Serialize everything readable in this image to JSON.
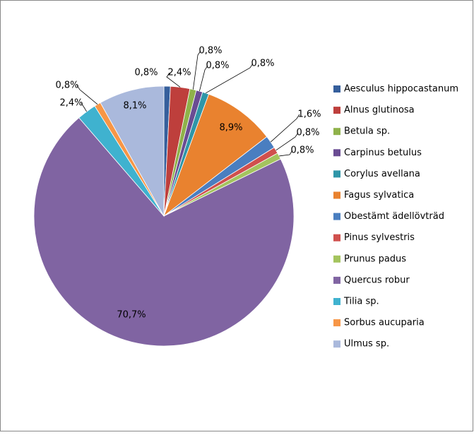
{
  "chart_data": {
    "type": "pie",
    "categories": [
      "Aesculus hippocastanum",
      "Alnus glutinosa",
      "Betula sp.",
      "Carpinus betulus",
      "Corylus avellana",
      "Fagus sylvatica",
      "Obestämt ädellövträd",
      "Pinus sylvestris",
      "Prunus padus",
      "Quercus robur",
      "Tilia sp.",
      "Sorbus aucuparia",
      "Ulmus sp."
    ],
    "values": [
      0.8,
      2.4,
      0.8,
      0.8,
      0.8,
      8.9,
      1.6,
      0.8,
      0.8,
      70.7,
      2.4,
      0.8,
      8.1
    ],
    "value_labels": [
      "0,8%",
      "2,4%",
      "0,8%",
      "0,8%",
      "0,8%",
      "8,9%",
      "1,6%",
      "0,8%",
      "0,8%",
      "70,7%",
      "2,4%",
      "0,8%",
      "8,1%"
    ],
    "colors": [
      "#365f9c",
      "#be3f3c",
      "#8fb24a",
      "#6a4c93",
      "#2f96a8",
      "#e9822f",
      "#4a7ec0",
      "#d0504d",
      "#a4c45e",
      "#8064a2",
      "#3fb2cf",
      "#f79646",
      "#aab9dc"
    ],
    "legend": "right"
  }
}
